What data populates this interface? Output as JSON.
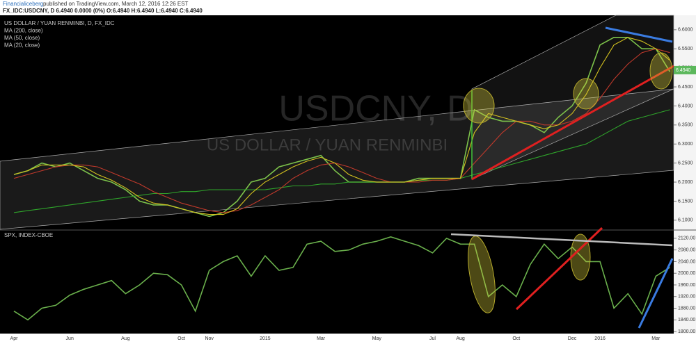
{
  "header": {
    "author": "Financialiceberg",
    "published": "published on TradingView.com, March 12, 2016 12:26 EST",
    "symbol_line": "FX_IDC:USDCNY, D  6.4940 0.0000 (0%) O:6.4940 H:6.4940 L:6.4940 C:6.4940"
  },
  "chart_data": [
    {
      "type": "line",
      "watermark": "USDCNY, D",
      "watermark_subtitle": "US DOLLAR / YUAN RENMINBI",
      "ylim": [
        6.076,
        6.638
      ],
      "yticks": [
        {
          "value": 6.1,
          "label": "6.1000"
        },
        {
          "value": 6.15,
          "label": "6.1500"
        },
        {
          "value": 6.2,
          "label": "6.2000"
        },
        {
          "value": 6.25,
          "label": "6.2500"
        },
        {
          "value": 6.3,
          "label": "6.3000"
        },
        {
          "value": 6.35,
          "label": "6.3500"
        },
        {
          "value": 6.4,
          "label": "6.4000"
        },
        {
          "value": 6.45,
          "label": "6.4500"
        },
        {
          "value": 6.5,
          "label": "6.5000"
        },
        {
          "value": 6.55,
          "label": "6.5500"
        },
        {
          "value": 6.6,
          "label": "6.6000"
        }
      ],
      "last_value": {
        "value": 6.494,
        "label": "6.4940"
      },
      "series": [
        {
          "name": "US DOLLAR / YUAN RENMINBI, D, FX_IDC",
          "color": "#7cc24a",
          "values": [
            6.22,
            6.23,
            6.25,
            6.24,
            6.25,
            6.23,
            6.21,
            6.2,
            6.18,
            6.15,
            6.14,
            6.14,
            6.13,
            6.12,
            6.11,
            6.12,
            6.15,
            6.2,
            6.21,
            6.24,
            6.25,
            6.26,
            6.27,
            6.23,
            6.2,
            6.2,
            6.2,
            6.2,
            6.2,
            6.21,
            6.21,
            6.21,
            6.21,
            6.39,
            6.37,
            6.36,
            6.36,
            6.35,
            6.33,
            6.37,
            6.4,
            6.46,
            6.56,
            6.58,
            6.58,
            6.55,
            6.55,
            6.49
          ]
        },
        {
          "name": "MA (200, close)",
          "color": "#2fa52b",
          "values": [
            6.12,
            6.125,
            6.13,
            6.135,
            6.14,
            6.145,
            6.15,
            6.155,
            6.16,
            6.165,
            6.17,
            6.17,
            6.175,
            6.175,
            6.18,
            6.18,
            6.18,
            6.18,
            6.18,
            6.185,
            6.19,
            6.19,
            6.195,
            6.195,
            6.2,
            6.2,
            6.2,
            6.2,
            6.2,
            6.205,
            6.205,
            6.205,
            6.21,
            6.22,
            6.23,
            6.24,
            6.25,
            6.26,
            6.27,
            6.28,
            6.29,
            6.3,
            6.32,
            6.34,
            6.36,
            6.37,
            6.38,
            6.39
          ]
        },
        {
          "name": "MA (50, close)",
          "color": "#c0392b",
          "values": [
            6.21,
            6.22,
            6.23,
            6.24,
            6.245,
            6.245,
            6.24,
            6.225,
            6.21,
            6.195,
            6.175,
            6.16,
            6.145,
            6.135,
            6.125,
            6.12,
            6.125,
            6.14,
            6.16,
            6.18,
            6.21,
            6.23,
            6.245,
            6.25,
            6.24,
            6.225,
            6.21,
            6.2,
            6.2,
            6.2,
            6.205,
            6.205,
            6.21,
            6.25,
            6.29,
            6.33,
            6.36,
            6.36,
            6.35,
            6.35,
            6.36,
            6.38,
            6.42,
            6.47,
            6.51,
            6.54,
            6.55,
            6.54
          ]
        },
        {
          "name": "MA (20, close)",
          "color": "#d4c21f",
          "values": [
            6.22,
            6.23,
            6.245,
            6.245,
            6.245,
            6.24,
            6.22,
            6.205,
            6.185,
            6.16,
            6.145,
            6.14,
            6.13,
            6.12,
            6.115,
            6.115,
            6.13,
            6.17,
            6.2,
            6.22,
            6.24,
            6.255,
            6.265,
            6.25,
            6.22,
            6.205,
            6.2,
            6.2,
            6.2,
            6.205,
            6.21,
            6.21,
            6.21,
            6.33,
            6.38,
            6.37,
            6.36,
            6.35,
            6.34,
            6.35,
            6.38,
            6.43,
            6.5,
            6.56,
            6.58,
            6.57,
            6.55,
            6.52
          ]
        }
      ]
    },
    {
      "type": "line",
      "categories": [
        "Apr",
        null,
        null,
        null,
        "Jun",
        null,
        null,
        null,
        "Aug",
        null,
        null,
        null,
        "Oct",
        null,
        "Nov",
        null,
        null,
        null,
        "2015",
        null,
        null,
        null,
        "Mar",
        null,
        null,
        null,
        "May",
        null,
        null,
        null,
        "Jul",
        null,
        "Aug",
        null,
        null,
        null,
        "Oct",
        null,
        null,
        null,
        "Dec",
        null,
        "2016",
        null,
        null,
        null,
        "Mar",
        null
      ],
      "ylim": [
        1793,
        2146
      ],
      "yticks": [
        {
          "value": 1800,
          "label": "1800.00"
        },
        {
          "value": 1840,
          "label": "1840.00"
        },
        {
          "value": 1880,
          "label": "1880.00"
        },
        {
          "value": 1920,
          "label": "1920.00"
        },
        {
          "value": 1960,
          "label": "1960.00"
        },
        {
          "value": 2000,
          "label": "2000.00"
        },
        {
          "value": 2040,
          "label": "2040.00"
        },
        {
          "value": 2080,
          "label": "2080.00"
        },
        {
          "value": 2120,
          "label": "2120.00"
        }
      ],
      "series": [
        {
          "name": "SPX, INDEX-CBOE",
          "color": "#6ab04c",
          "values": [
            1870,
            1840,
            1880,
            1890,
            1925,
            1945,
            1960,
            1975,
            1930,
            1960,
            2000,
            1995,
            1960,
            1870,
            2010,
            2040,
            2060,
            1990,
            2060,
            2010,
            2020,
            2100,
            2110,
            2075,
            2080,
            2100,
            2110,
            2125,
            2110,
            2095,
            2070,
            2120,
            2100,
            2100,
            1920,
            1960,
            1920,
            2030,
            2100,
            2050,
            2090,
            2040,
            2040,
            1880,
            1930,
            1860,
            1990,
            2020
          ]
        }
      ]
    }
  ]
}
